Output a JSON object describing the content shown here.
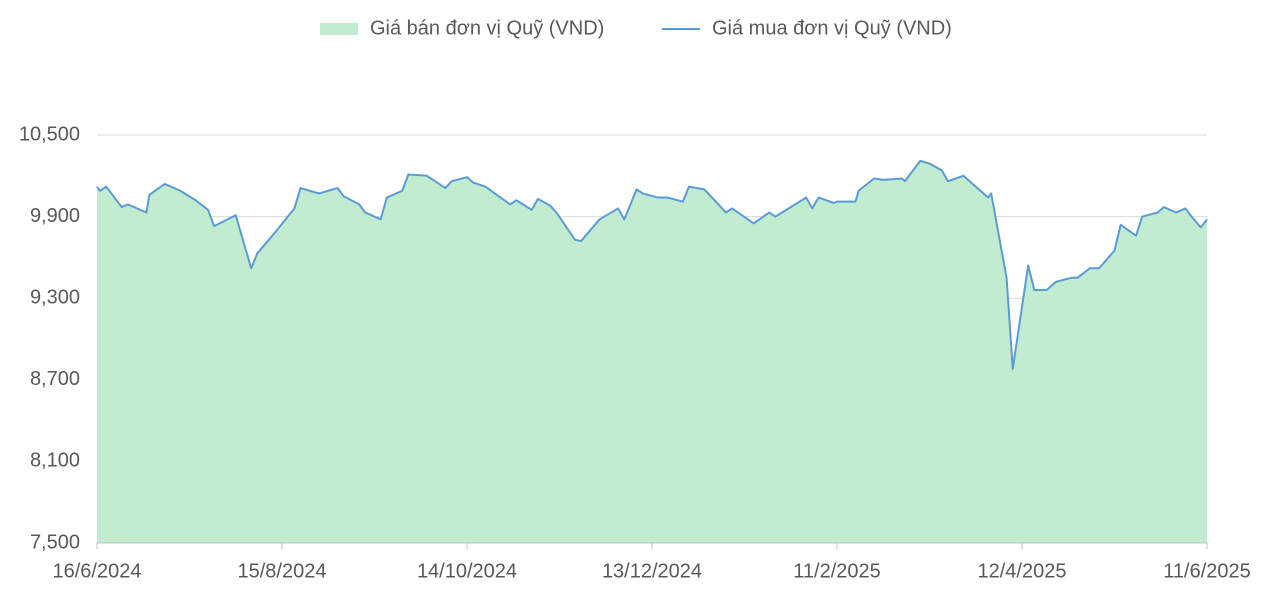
{
  "chart_data": {
    "type": "area",
    "x": [
      "2024-06-16",
      "2024-06-17",
      "2024-06-19",
      "2024-06-24",
      "2024-06-26",
      "2024-07-02",
      "2024-07-03",
      "2024-07-08",
      "2024-07-13",
      "2024-07-18",
      "2024-07-22",
      "2024-07-24",
      "2024-07-31",
      "2024-08-05",
      "2024-08-07",
      "2024-08-13",
      "2024-08-19",
      "2024-08-21",
      "2024-08-27",
      "2024-09-02",
      "2024-09-04",
      "2024-09-09",
      "2024-09-11",
      "2024-09-16",
      "2024-09-18",
      "2024-09-23",
      "2024-09-25",
      "2024-10-01",
      "2024-10-07",
      "2024-10-09",
      "2024-10-14",
      "2024-10-16",
      "2024-10-20",
      "2024-10-23",
      "2024-10-28",
      "2024-10-30",
      "2024-11-04",
      "2024-11-06",
      "2024-11-10",
      "2024-11-12",
      "2024-11-18",
      "2024-11-20",
      "2024-11-26",
      "2024-12-02",
      "2024-12-04",
      "2024-12-08",
      "2024-12-10",
      "2024-12-15",
      "2024-12-18",
      "2024-12-23",
      "2024-12-25",
      "2024-12-30",
      "2025-01-06",
      "2025-01-08",
      "2025-01-15",
      "2025-01-20",
      "2025-01-22",
      "2025-02-01",
      "2025-02-03",
      "2025-02-05",
      "2025-02-10",
      "2025-02-11",
      "2025-02-17",
      "2025-02-18",
      "2025-02-23",
      "2025-02-26",
      "2025-03-04",
      "2025-03-05",
      "2025-03-10",
      "2025-03-13",
      "2025-03-17",
      "2025-03-19",
      "2025-03-24",
      "2025-04-01",
      "2025-04-02",
      "2025-04-07",
      "2025-04-09",
      "2025-04-14",
      "2025-04-16",
      "2025-04-20",
      "2025-04-23",
      "2025-04-28",
      "2025-04-30",
      "2025-05-04",
      "2025-05-07",
      "2025-05-12",
      "2025-05-14",
      "2025-05-19",
      "2025-05-21",
      "2025-05-26",
      "2025-05-28",
      "2025-06-01",
      "2025-06-04",
      "2025-06-06",
      "2025-06-09",
      "2025-06-11"
    ],
    "series": [
      {
        "name": "Giá bán đơn vị Quỹ (VND)",
        "mark": "area",
        "color": "#c2ecd0",
        "values": [
          10120,
          10090,
          10120,
          9970,
          9990,
          9930,
          10060,
          10140,
          10090,
          10020,
          9950,
          9830,
          9910,
          9520,
          9630,
          9790,
          9960,
          10110,
          10070,
          10110,
          10050,
          9990,
          9930,
          9880,
          10040,
          10090,
          10210,
          10200,
          10110,
          10160,
          10190,
          10150,
          10120,
          10070,
          9990,
          10020,
          9950,
          10030,
          9980,
          9930,
          9730,
          9720,
          9880,
          9960,
          9880,
          10100,
          10070,
          10040,
          10040,
          10010,
          10120,
          10100,
          9930,
          9960,
          9850,
          9930,
          9900,
          10040,
          9960,
          10040,
          10000,
          10010,
          10010,
          10090,
          10180,
          10170,
          10180,
          10160,
          10310,
          10290,
          10240,
          10160,
          10200,
          10040,
          10070,
          9450,
          8780,
          9540,
          9360,
          9360,
          9420,
          9450,
          9450,
          9520,
          9520,
          9650,
          9840,
          9760,
          9900,
          9930,
          9970,
          9930,
          9960,
          9900,
          9820,
          9880
        ]
      },
      {
        "name": "Giá mua đơn vị Quỹ (VND)",
        "mark": "line",
        "color": "#5b9bd5",
        "values": [
          10120,
          10090,
          10120,
          9970,
          9990,
          9930,
          10060,
          10140,
          10090,
          10020,
          9950,
          9830,
          9910,
          9520,
          9630,
          9790,
          9960,
          10110,
          10070,
          10110,
          10050,
          9990,
          9930,
          9880,
          10040,
          10090,
          10210,
          10200,
          10110,
          10160,
          10190,
          10150,
          10120,
          10070,
          9990,
          10020,
          9950,
          10030,
          9980,
          9930,
          9730,
          9720,
          9880,
          9960,
          9880,
          10100,
          10070,
          10040,
          10040,
          10010,
          10120,
          10100,
          9930,
          9960,
          9850,
          9930,
          9900,
          10040,
          9960,
          10040,
          10000,
          10010,
          10010,
          10090,
          10180,
          10170,
          10180,
          10160,
          10310,
          10290,
          10240,
          10160,
          10200,
          10040,
          10070,
          9450,
          8780,
          9540,
          9360,
          9360,
          9420,
          9450,
          9450,
          9520,
          9520,
          9650,
          9840,
          9760,
          9900,
          9930,
          9970,
          9930,
          9960,
          9900,
          9820,
          9880
        ]
      }
    ],
    "xlim": [
      "2024-06-16",
      "2025-06-11"
    ],
    "xticks": [
      {
        "value": "2024-06-16",
        "label": "16/6/2024"
      },
      {
        "value": "2024-08-15",
        "label": "15/8/2024"
      },
      {
        "value": "2024-10-14",
        "label": "14/10/2024"
      },
      {
        "value": "2024-12-13",
        "label": "13/12/2024"
      },
      {
        "value": "2025-02-11",
        "label": "11/2/2025"
      },
      {
        "value": "2025-04-12",
        "label": "12/4/2025"
      },
      {
        "value": "2025-06-11",
        "label": "11/6/2025"
      }
    ],
    "ylim": [
      7500,
      10500
    ],
    "yticks": [
      {
        "value": 7500,
        "label": "7,500"
      },
      {
        "value": 8100,
        "label": "8,100"
      },
      {
        "value": 8700,
        "label": "8,700"
      },
      {
        "value": 9300,
        "label": "9,300"
      },
      {
        "value": 9900,
        "label": "9,900"
      },
      {
        "value": 10500,
        "label": "10,500"
      }
    ],
    "grid": true,
    "legend": "top"
  }
}
